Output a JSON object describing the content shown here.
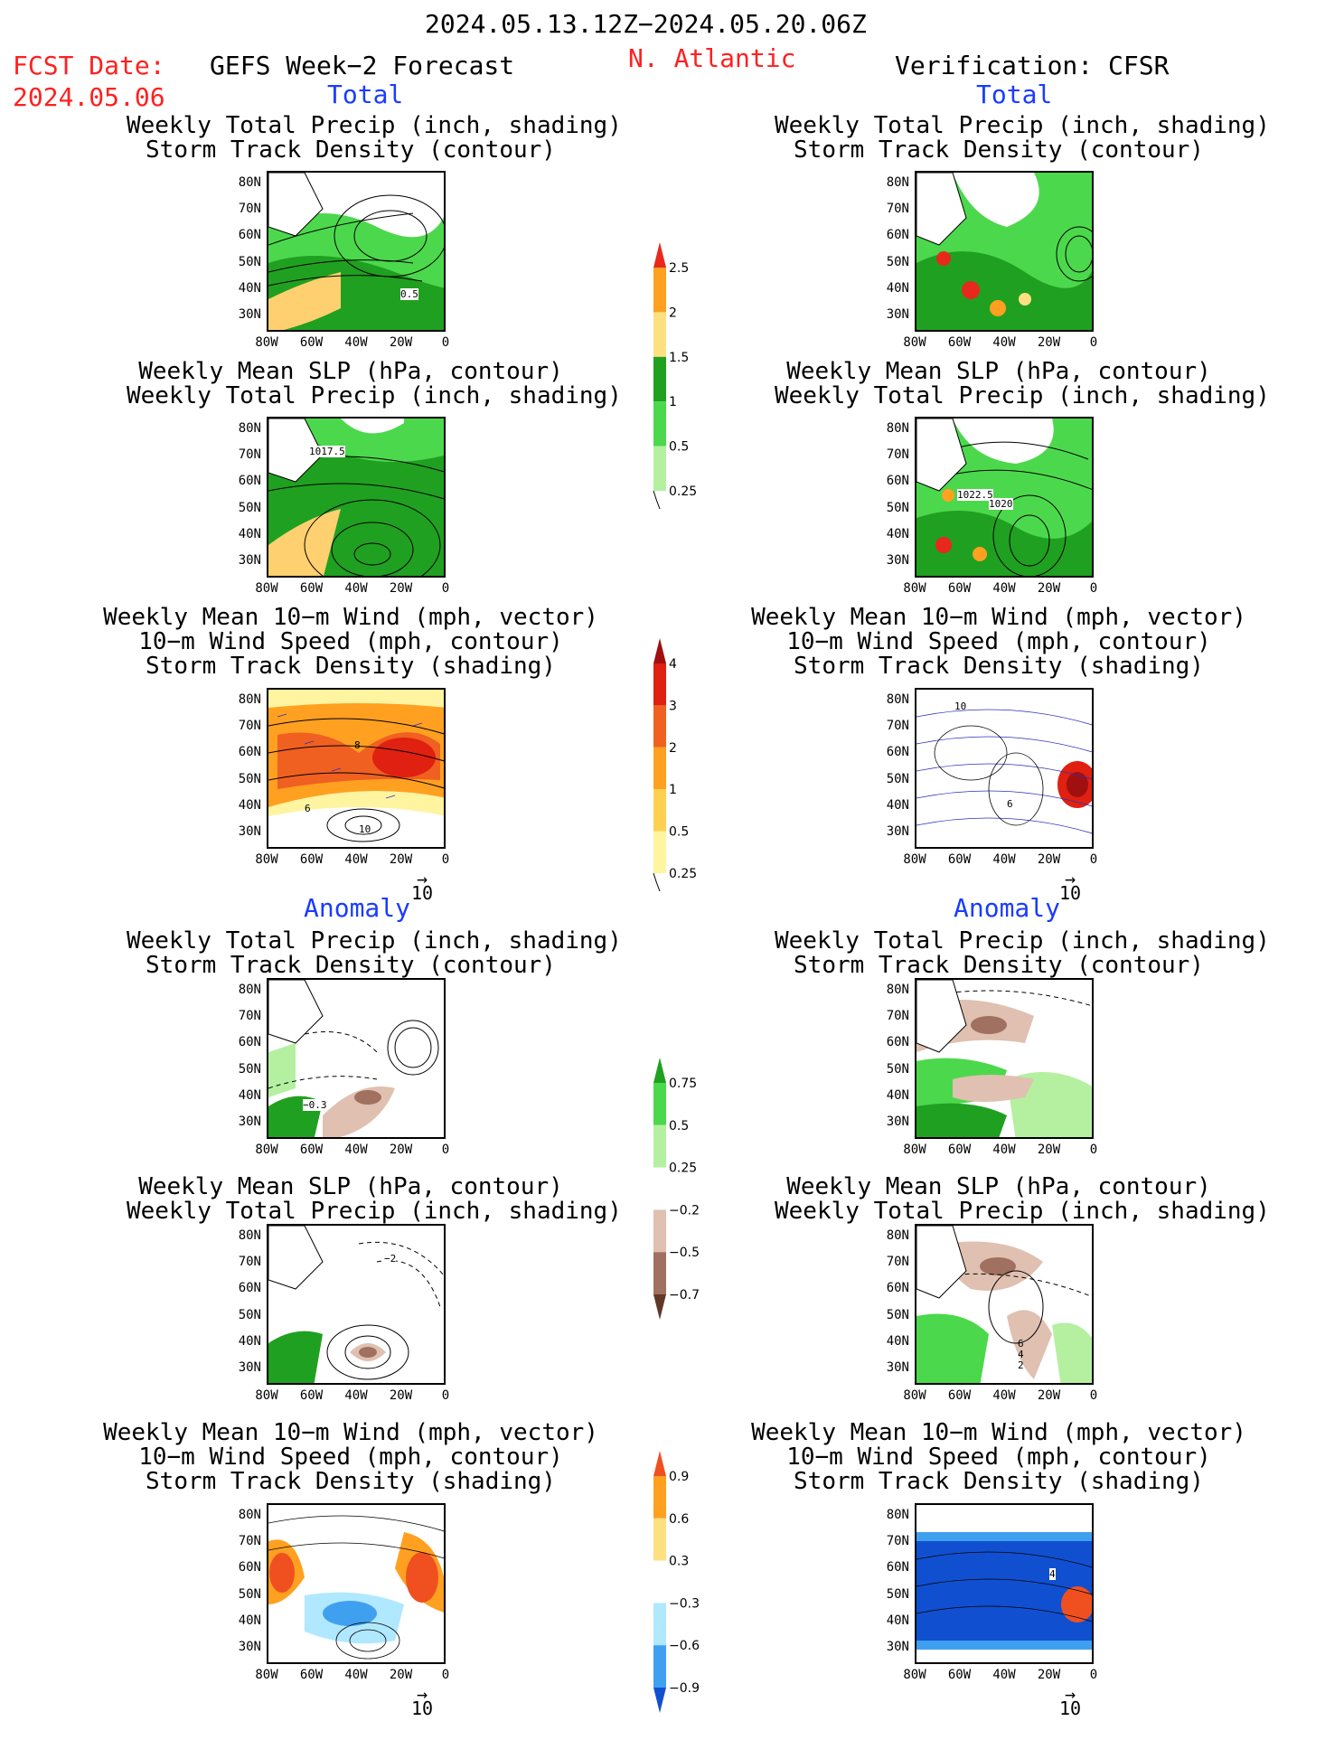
{
  "header": {
    "period": "2024.05.13.12Z−2024.05.20.06Z",
    "fcst_label": "FCST Date:",
    "fcst_date": "2024.05.06",
    "left_title": "GEFS Week−2 Forecast",
    "region": "N. Atlantic",
    "right_title": "Verification: CFSR"
  },
  "sections": {
    "total": "Total",
    "anomaly": "Anomaly"
  },
  "titles": {
    "precip_track": [
      "Weekly Total Precip (inch, shading)",
      "Storm Track Density (contour)"
    ],
    "slp_precip": [
      "Weekly Mean SLP (hPa, contour)",
      "Weekly Total Precip (inch, shading)"
    ],
    "wind_track": [
      "Weekly Mean 10−m Wind (mph, vector)",
      "10−m Wind Speed (mph, contour)",
      "Storm Track Density (shading)"
    ]
  },
  "axes": {
    "lat_ticks": [
      "80N",
      "70N",
      "60N",
      "50N",
      "40N",
      "30N"
    ],
    "lon_ticks": [
      "80W",
      "60W",
      "40W",
      "20W",
      "0"
    ]
  },
  "vector_ref": "10",
  "map_labels": {
    "gefs_total_precip": "0.5",
    "gefs_total_slp": "1017.5",
    "cfsr_total_slp_a": "1022.5",
    "cfsr_total_slp_b": "1020",
    "gefs_total_wind_a": "6",
    "gefs_total_wind_b": "10",
    "gefs_total_wind_c": "8",
    "cfsr_total_wind_a": "10",
    "cfsr_total_wind_b": "6",
    "gefs_anom_precip": "−0.3",
    "gefs_anom_slp": "−2",
    "cfsr_anom_slp_a": "6",
    "cfsr_anom_slp_b": "4",
    "cfsr_anom_slp_c": "2",
    "cfsr_anom_wind": "4"
  },
  "colorbars": {
    "precip_total": {
      "labels": [
        "2.5",
        "2",
        "1.5",
        "1",
        "0.5",
        "0.25"
      ],
      "colors": [
        "#e8281c",
        "#ffa020",
        "#ffe080",
        "#20a020",
        "#4cd84c",
        "#b4f0a0"
      ]
    },
    "track_total": {
      "labels": [
        "4",
        "3",
        "2",
        "1",
        "0.5",
        "0.25"
      ],
      "colors": [
        "#a01010",
        "#e02010",
        "#f06020",
        "#ffa020",
        "#ffd050",
        "#fff4a0"
      ]
    },
    "precip_anom": {
      "labels": [
        "0.75",
        "0.5",
        "0.25",
        "−0.25",
        "−0.5",
        "−0.75"
      ],
      "colors": [
        "#20a020",
        "#4cd84c",
        "#b4f0a0",
        "#ffffff",
        "#e0c0b0",
        "#a07060",
        "#603828"
      ]
    },
    "track_anom": {
      "labels": [
        "0.9",
        "0.6",
        "0.3",
        "−0.3",
        "−0.6",
        "−0.9"
      ],
      "colors": [
        "#f05020",
        "#ffa020",
        "#ffe080",
        "#ffffff",
        "#b0e8ff",
        "#40a0f0",
        "#1050d0"
      ]
    }
  }
}
